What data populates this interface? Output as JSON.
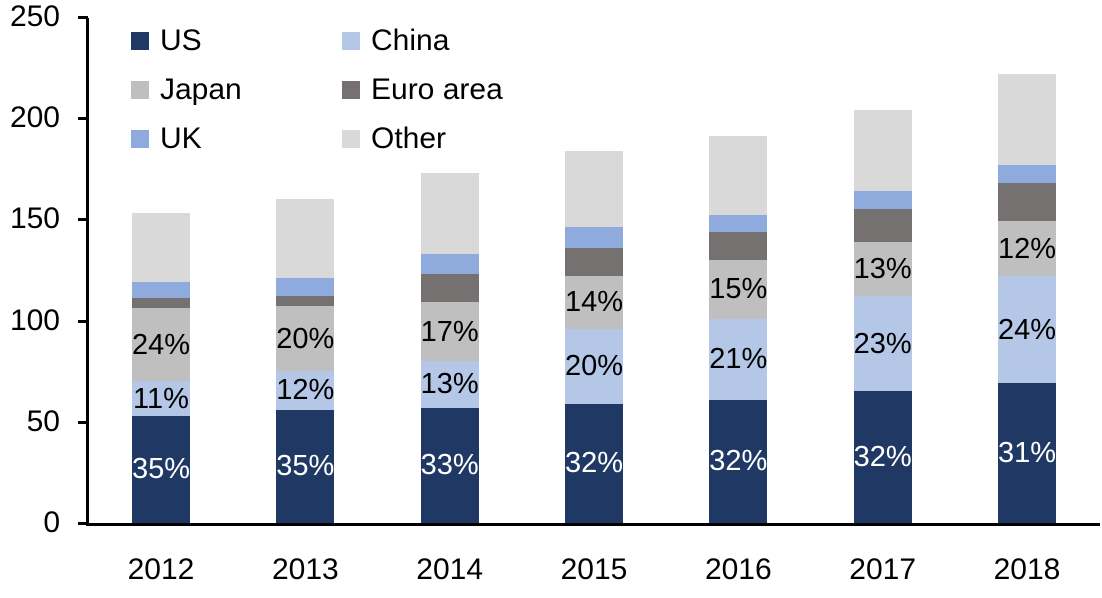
{
  "chart_data": {
    "type": "bar",
    "stacked": true,
    "title": "",
    "xlabel": "",
    "ylabel": "",
    "categories": [
      "2012",
      "2013",
      "2014",
      "2015",
      "2016",
      "2017",
      "2018"
    ],
    "series": [
      {
        "name": "US",
        "color": "#1F3864",
        "values": [
          53,
          56,
          57,
          59,
          61,
          65,
          69
        ],
        "labels": [
          "35%",
          "35%",
          "33%",
          "32%",
          "32%",
          "32%",
          "31%"
        ],
        "label_color": "#FFFFFF"
      },
      {
        "name": "China",
        "color": "#B4C7E7",
        "values": [
          17,
          19,
          23,
          37,
          40,
          47,
          53
        ],
        "labels": [
          "11%",
          "12%",
          "13%",
          "20%",
          "21%",
          "23%",
          "24%"
        ],
        "label_color": "#000000"
      },
      {
        "name": "Japan",
        "color": "#BFBFBF",
        "values": [
          36,
          32,
          29,
          26,
          29,
          27,
          27
        ],
        "labels": [
          "24%",
          "20%",
          "17%",
          "14%",
          "15%",
          "13%",
          "12%"
        ],
        "label_color": "#000000"
      },
      {
        "name": "Euro area",
        "color": "#767171",
        "values": [
          5,
          5,
          14,
          14,
          14,
          16,
          19
        ],
        "labels": null,
        "label_color": null
      },
      {
        "name": "UK",
        "color": "#8FAADC",
        "values": [
          8,
          9,
          10,
          10,
          8,
          9,
          9
        ],
        "labels": null,
        "label_color": null
      },
      {
        "name": "Other",
        "color": "#D9D9D9",
        "values": [
          34,
          39,
          40,
          38,
          39,
          40,
          45
        ],
        "labels": null,
        "label_color": null
      }
    ],
    "totals": [
      153,
      160,
      173,
      184,
      191,
      204,
      222
    ],
    "y_axis": {
      "min": 0,
      "max": 250,
      "step": 50,
      "tick_labels": [
        "0",
        "50",
        "100",
        "150",
        "200",
        "250"
      ]
    },
    "legend": {
      "position": "top-left",
      "columns": 2,
      "order": [
        "US",
        "China",
        "Japan",
        "Euro area",
        "UK",
        "Other"
      ]
    },
    "grid": false,
    "axis_color": "#000000",
    "background_color": "#FFFFFF"
  }
}
